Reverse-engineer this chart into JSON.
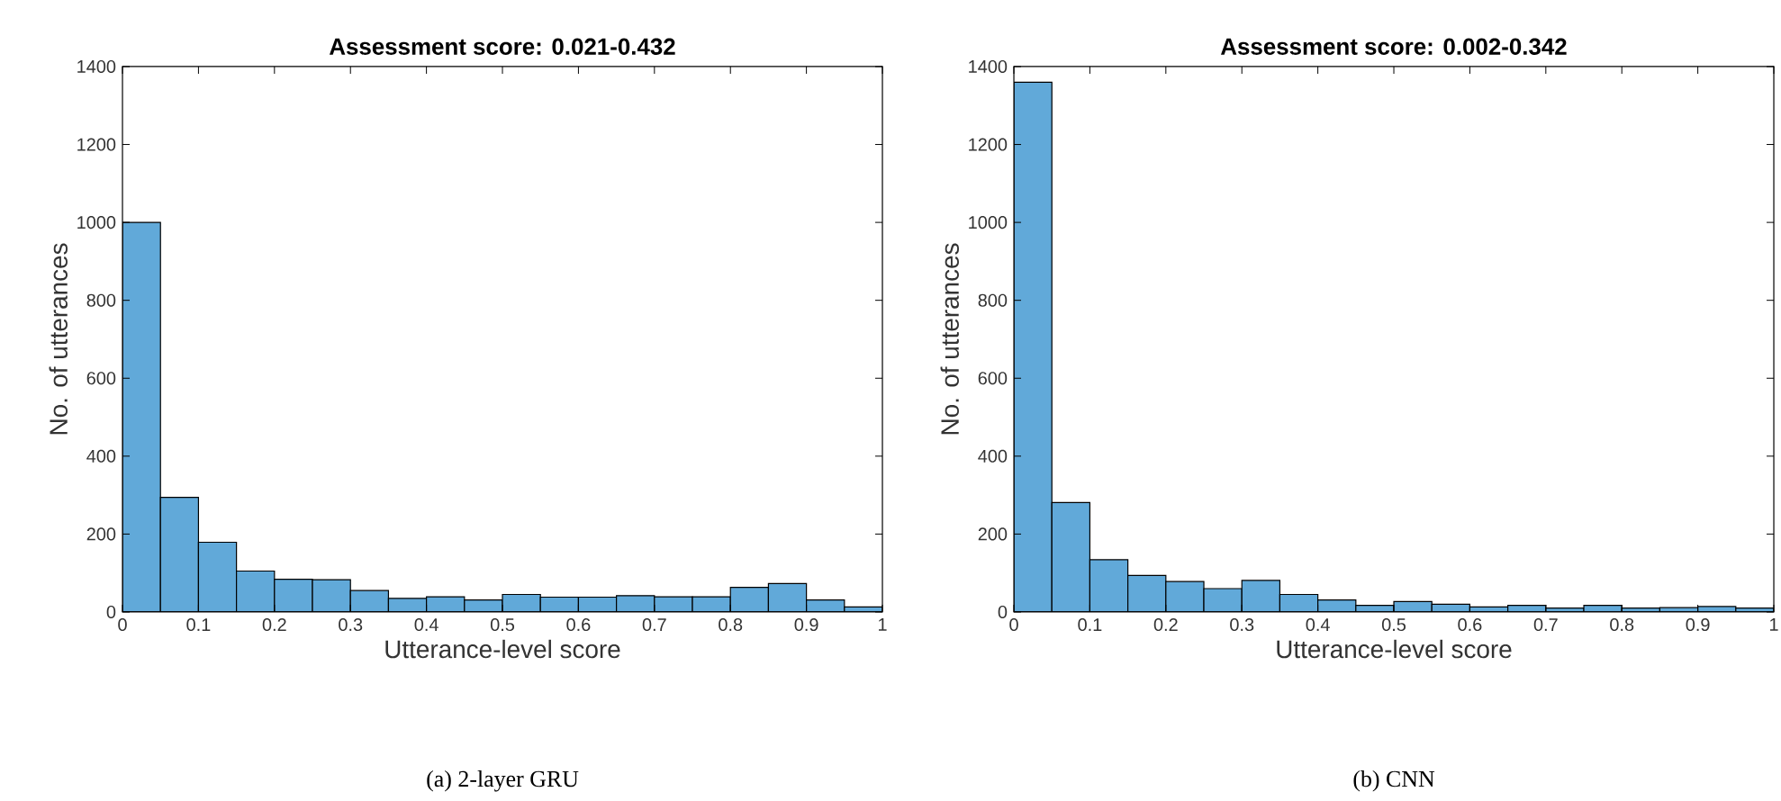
{
  "chart_data": [
    {
      "type": "histogram",
      "title": "Assessment score: 0.021-0.432",
      "xlabel": "Utterance-level score",
      "ylabel": "No. of utterances",
      "annotations": [
        "(a) 2-layer GRU"
      ],
      "bins": [
        0,
        0.05,
        0.1,
        0.15,
        0.2,
        0.25,
        0.3,
        0.35,
        0.4,
        0.45,
        0.5,
        0.55,
        0.6,
        0.65,
        0.7,
        0.75,
        0.8,
        0.85,
        0.9,
        0.95,
        1
      ],
      "values": [
        1000,
        294,
        179,
        105,
        84,
        83,
        55,
        35,
        39,
        31,
        45,
        38,
        38,
        42,
        39,
        39,
        63,
        73,
        31,
        13
      ],
      "color": "#61a9d9",
      "xlim": [
        0,
        1
      ],
      "ylim": [
        0,
        1400
      ],
      "xticks": [
        0,
        0.1,
        0.2,
        0.3,
        0.4,
        0.5,
        0.6,
        0.7,
        0.8,
        0.9,
        1
      ],
      "yticks": [
        0,
        200,
        400,
        600,
        800,
        1000,
        1200,
        1400
      ]
    },
    {
      "type": "histogram",
      "title": "Assessment score: 0.002-0.342",
      "xlabel": "Utterance-level score",
      "ylabel": "No. of utterances",
      "annotations": [
        "(b) CNN"
      ],
      "bins": [
        0,
        0.05,
        0.1,
        0.15,
        0.2,
        0.25,
        0.3,
        0.35,
        0.4,
        0.45,
        0.5,
        0.55,
        0.6,
        0.65,
        0.7,
        0.75,
        0.8,
        0.85,
        0.9,
        0.95,
        1
      ],
      "values": [
        1360,
        281,
        134,
        94,
        78,
        60,
        81,
        45,
        31,
        17,
        27,
        20,
        13,
        17,
        10,
        17,
        10,
        11,
        14,
        10
      ],
      "color": "#61a9d9",
      "xlim": [
        0,
        1
      ],
      "ylim": [
        0,
        1400
      ],
      "xticks": [
        0,
        0.1,
        0.2,
        0.3,
        0.4,
        0.5,
        0.6,
        0.7,
        0.8,
        0.9,
        1
      ],
      "yticks": [
        0,
        200,
        400,
        600,
        800,
        1000,
        1200,
        1400
      ]
    }
  ]
}
